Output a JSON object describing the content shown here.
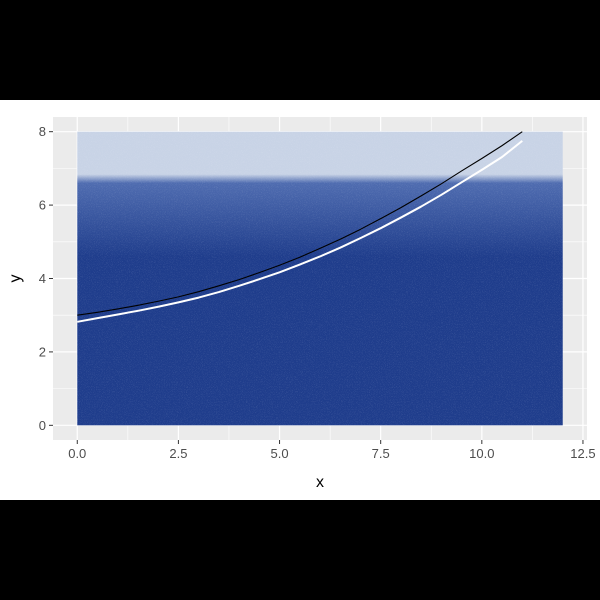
{
  "chart_data": {
    "type": "line",
    "title": "",
    "xlabel": "x",
    "ylabel": "y",
    "xlim": [
      -0.6,
      12.6
    ],
    "ylim": [
      -0.4,
      8.4
    ],
    "x_ticks": [
      0,
      2.5,
      5,
      7.5,
      10,
      12.5
    ],
    "x_tick_labels": [
      "0.0",
      "2.5",
      "5.0",
      "7.5",
      "10.0",
      "12.5"
    ],
    "y_ticks": [
      0,
      2,
      4,
      6,
      8
    ],
    "y_tick_labels": [
      "0",
      "2",
      "4",
      "6",
      "8"
    ],
    "grid": true,
    "panel_background": "#ebebeb",
    "background_band": {
      "x_range": [
        0,
        12
      ],
      "y_range": [
        0,
        8
      ],
      "dense_color": "#1f3d8c",
      "sparse_color": "#c8d3e6",
      "fade_start_y": 6.6
    },
    "series": [
      {
        "color": "#000000",
        "x": [
          0,
          0.5,
          1,
          1.5,
          2,
          2.5,
          3,
          3.5,
          4,
          4.5,
          5,
          5.5,
          6,
          6.5,
          7,
          7.5,
          8,
          8.5,
          9,
          9.5,
          10,
          10.5,
          11
        ],
        "y": [
          3.0,
          3.08,
          3.17,
          3.27,
          3.38,
          3.5,
          3.64,
          3.8,
          3.97,
          4.16,
          4.36,
          4.58,
          4.82,
          5.07,
          5.34,
          5.63,
          5.93,
          6.25,
          6.58,
          6.93,
          7.27,
          7.62,
          8.0
        ]
      },
      {
        "color": "#ffffff",
        "x": [
          0,
          0.5,
          1,
          1.5,
          2,
          2.5,
          3,
          3.5,
          4,
          4.5,
          5,
          5.5,
          6,
          6.5,
          7,
          7.5,
          8,
          8.5,
          9,
          9.5,
          10,
          10.5,
          11
        ],
        "y": [
          2.82,
          2.92,
          3.02,
          3.12,
          3.23,
          3.35,
          3.48,
          3.63,
          3.8,
          3.98,
          4.17,
          4.38,
          4.6,
          4.84,
          5.1,
          5.37,
          5.66,
          5.96,
          6.28,
          6.62,
          6.96,
          7.31,
          7.75
        ]
      }
    ]
  }
}
